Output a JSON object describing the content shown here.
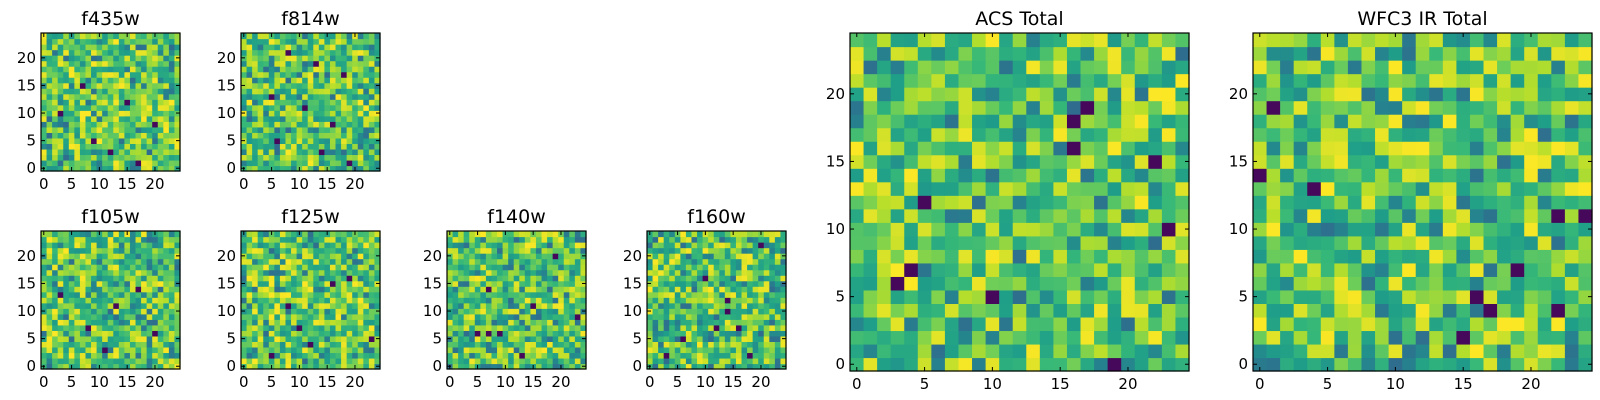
{
  "chart_data": [
    {
      "type": "heatmap",
      "title": "f435w",
      "grid_size": [
        25,
        25
      ],
      "xlim": [
        0,
        24
      ],
      "ylim": [
        0,
        24
      ],
      "xticks": [
        0,
        5,
        10,
        15,
        20
      ],
      "yticks": [
        0,
        5,
        10,
        15,
        20
      ],
      "colormap": "viridis",
      "noise_seed": 11,
      "dark_pixels": [
        [
          7,
          15
        ],
        [
          15,
          12
        ],
        [
          3,
          10
        ],
        [
          20,
          8
        ],
        [
          9,
          5
        ],
        [
          12,
          3
        ],
        [
          17,
          1
        ]
      ]
    },
    {
      "type": "heatmap",
      "title": "f814w",
      "grid_size": [
        25,
        25
      ],
      "xlim": [
        0,
        24
      ],
      "ylim": [
        0,
        24
      ],
      "xticks": [
        0,
        5,
        10,
        15,
        20
      ],
      "yticks": [
        0,
        5,
        10,
        15,
        20
      ],
      "colormap": "viridis",
      "noise_seed": 23,
      "dark_pixels": [
        [
          8,
          21
        ],
        [
          13,
          19
        ],
        [
          18,
          17
        ],
        [
          5,
          13
        ],
        [
          11,
          11
        ],
        [
          16,
          8
        ],
        [
          6,
          5
        ],
        [
          14,
          3
        ],
        [
          19,
          1
        ]
      ]
    },
    {
      "type": "heatmap",
      "title": "f105w",
      "grid_size": [
        25,
        25
      ],
      "xlim": [
        0,
        24
      ],
      "ylim": [
        0,
        24
      ],
      "xticks": [
        0,
        5,
        10,
        15,
        20
      ],
      "yticks": [
        0,
        5,
        10,
        15,
        20
      ],
      "colormap": "viridis",
      "noise_seed": 37,
      "dark_pixels": [
        [
          17,
          14
        ],
        [
          3,
          13
        ],
        [
          13,
          11
        ],
        [
          8,
          7
        ],
        [
          20,
          6
        ],
        [
          11,
          3
        ]
      ]
    },
    {
      "type": "heatmap",
      "title": "f125w",
      "grid_size": [
        25,
        25
      ],
      "xlim": [
        0,
        24
      ],
      "ylim": [
        0,
        24
      ],
      "xticks": [
        0,
        5,
        10,
        15,
        20
      ],
      "yticks": [
        0,
        5,
        10,
        15,
        20
      ],
      "colormap": "viridis",
      "noise_seed": 41,
      "dark_pixels": [
        [
          16,
          15
        ],
        [
          19,
          16
        ],
        [
          8,
          11
        ],
        [
          10,
          7
        ],
        [
          12,
          4
        ],
        [
          23,
          5
        ],
        [
          5,
          2
        ]
      ]
    },
    {
      "type": "heatmap",
      "title": "f140w",
      "grid_size": [
        25,
        25
      ],
      "xlim": [
        0,
        24
      ],
      "ylim": [
        0,
        24
      ],
      "xticks": [
        0,
        5,
        10,
        15,
        20
      ],
      "yticks": [
        0,
        5,
        10,
        15,
        20
      ],
      "colormap": "viridis",
      "noise_seed": 53,
      "dark_pixels": [
        [
          19,
          20
        ],
        [
          7,
          14
        ],
        [
          15,
          11
        ],
        [
          5,
          6
        ],
        [
          7,
          6
        ],
        [
          9,
          6
        ],
        [
          23,
          9
        ],
        [
          13,
          2
        ]
      ]
    },
    {
      "type": "heatmap",
      "title": "f160w",
      "grid_size": [
        25,
        25
      ],
      "xlim": [
        0,
        24
      ],
      "ylim": [
        0,
        24
      ],
      "xticks": [
        0,
        5,
        10,
        15,
        20
      ],
      "yticks": [
        0,
        5,
        10,
        15,
        20
      ],
      "colormap": "viridis",
      "noise_seed": 67,
      "dark_pixels": [
        [
          20,
          22
        ],
        [
          10,
          16
        ],
        [
          14,
          12
        ],
        [
          14,
          10
        ],
        [
          16,
          7
        ],
        [
          12,
          7
        ],
        [
          6,
          5
        ],
        [
          3,
          2
        ],
        [
          18,
          2
        ]
      ]
    },
    {
      "type": "heatmap",
      "title": "ACS Total",
      "grid_size": [
        25,
        25
      ],
      "xlim": [
        0,
        24
      ],
      "ylim": [
        0,
        24
      ],
      "xticks": [
        0,
        5,
        10,
        15,
        20
      ],
      "yticks": [
        0,
        5,
        10,
        15,
        20
      ],
      "colormap": "viridis",
      "noise_seed": 79,
      "dark_pixels": [
        [
          17,
          19
        ],
        [
          16,
          18
        ],
        [
          16,
          16
        ],
        [
          22,
          15
        ],
        [
          5,
          12
        ],
        [
          23,
          10
        ],
        [
          4,
          7
        ],
        [
          3,
          6
        ],
        [
          10,
          5
        ],
        [
          19,
          0
        ]
      ]
    },
    {
      "type": "heatmap",
      "title": "WFC3 IR Total",
      "grid_size": [
        25,
        25
      ],
      "xlim": [
        0,
        24
      ],
      "ylim": [
        0,
        24
      ],
      "xticks": [
        0,
        5,
        10,
        15,
        20
      ],
      "yticks": [
        0,
        5,
        10,
        15,
        20
      ],
      "colormap": "viridis",
      "noise_seed": 97,
      "dark_pixels": [
        [
          1,
          19
        ],
        [
          0,
          14
        ],
        [
          4,
          13
        ],
        [
          22,
          11
        ],
        [
          24,
          11
        ],
        [
          19,
          7
        ],
        [
          16,
          5
        ],
        [
          22,
          4
        ],
        [
          17,
          4
        ],
        [
          15,
          2
        ]
      ]
    }
  ]
}
